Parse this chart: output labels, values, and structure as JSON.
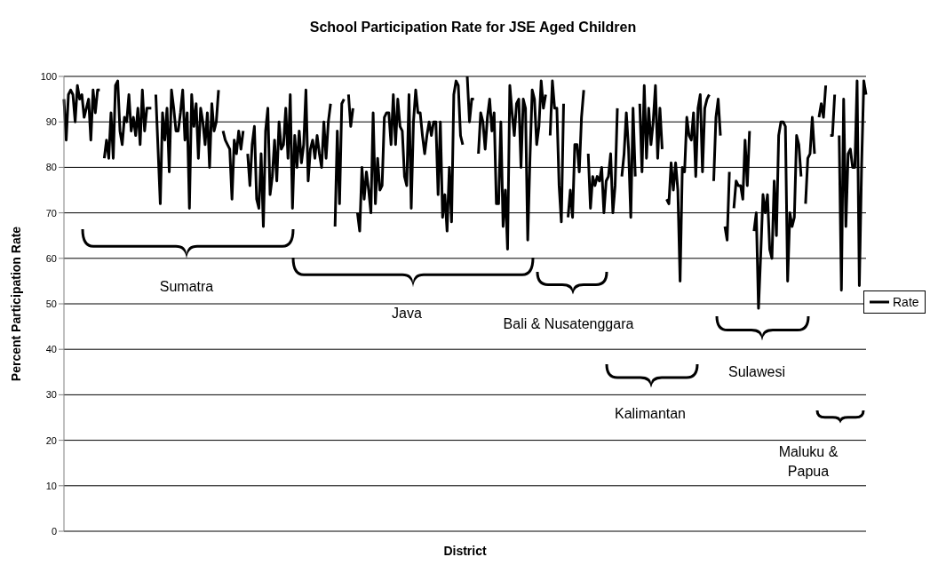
{
  "chart_data": {
    "type": "line",
    "title": "School Participation Rate for JSE Aged Children",
    "xlabel": "District",
    "ylabel": "Percent Participation Rate",
    "annotations": [
      "Sumatra",
      "Java",
      "Bali & Nusatenggara",
      "Kalimantan",
      "Sulawesi",
      "Maluku & Papua"
    ],
    "categories": [
      null,
      null,
      null,
      null,
      null,
      null,
      null,
      null,
      null,
      null,
      null,
      null,
      null,
      null,
      null,
      null,
      null,
      null,
      null,
      null,
      null,
      null,
      null,
      null,
      null,
      null,
      null,
      null,
      null,
      null,
      null,
      null,
      null,
      null,
      null,
      null,
      null,
      null,
      null,
      null,
      null,
      null,
      null,
      null,
      null,
      null,
      null,
      null,
      null,
      null,
      null,
      null,
      null,
      null,
      null,
      null,
      null,
      null,
      null,
      null,
      null,
      null,
      null,
      null,
      null,
      null,
      null,
      null,
      null,
      null,
      null,
      null,
      null,
      null,
      null,
      null,
      null,
      null,
      null,
      null,
      null,
      null,
      null,
      null,
      null,
      null,
      null,
      null,
      null,
      null,
      null,
      null,
      null,
      null,
      null,
      null,
      null,
      null,
      null,
      null,
      null,
      null,
      null,
      null,
      null,
      null,
      null,
      null,
      null,
      null,
      null,
      null,
      null,
      null,
      null,
      null,
      null,
      null,
      null,
      null,
      null,
      null,
      null,
      null,
      null,
      null,
      null,
      null,
      null,
      null,
      null,
      null,
      null,
      null,
      null,
      null,
      null,
      null,
      null,
      null,
      null,
      null,
      null,
      null,
      null,
      null,
      null,
      null,
      null,
      null,
      null,
      null,
      null,
      null,
      null,
      null,
      null,
      null,
      null,
      null,
      null,
      null,
      null,
      null,
      null,
      null,
      null,
      null,
      null,
      null,
      null,
      null,
      null,
      null,
      null,
      null,
      null,
      null,
      null,
      null,
      null,
      null,
      null,
      null,
      null,
      null,
      null,
      null,
      null,
      null,
      null,
      null,
      null,
      null,
      null,
      null,
      null,
      null,
      null,
      null,
      null,
      null,
      null,
      null,
      null,
      null,
      null,
      null,
      null,
      null,
      null,
      null,
      null,
      null,
      null,
      null,
      null,
      null,
      null,
      null,
      null,
      null,
      null,
      null,
      null,
      null,
      null,
      null,
      null,
      null,
      null,
      null,
      null,
      null,
      null,
      null,
      null,
      null,
      null,
      null,
      null,
      null,
      null,
      null,
      null,
      null,
      null,
      null,
      null,
      null,
      null,
      null,
      null,
      null,
      null,
      null,
      null,
      null,
      null,
      null,
      null,
      null,
      null,
      null,
      null,
      null,
      null,
      null,
      null,
      null,
      null,
      null,
      null,
      null,
      null,
      null,
      null,
      null,
      null,
      null,
      null,
      null,
      null,
      null,
      null,
      null,
      null,
      null,
      null,
      null,
      null,
      null,
      null,
      null,
      null,
      null,
      null,
      null,
      null,
      null,
      null,
      null,
      null,
      null,
      null,
      null,
      null,
      null,
      null,
      null,
      null,
      null,
      null,
      null,
      null,
      null,
      null,
      null,
      null,
      null,
      null,
      null,
      null,
      null,
      null,
      null,
      null,
      null,
      null,
      null,
      null,
      null,
      null,
      null,
      null,
      null,
      null,
      null,
      null,
      null,
      null,
      null,
      null,
      null,
      null,
      null,
      null,
      null,
      null,
      null,
      null,
      null,
      null,
      null,
      null,
      null,
      null,
      null,
      null
    ],
    "series": [
      {
        "name": "Rate",
        "color": "#000000",
        "values": [
          95,
          86,
          96,
          97,
          96,
          90,
          98,
          95,
          96,
          91,
          93,
          95,
          86,
          97,
          92,
          97,
          97,
          null,
          82,
          86,
          82,
          92,
          82,
          98,
          99,
          88,
          85,
          91,
          90,
          96,
          88,
          91,
          87,
          93,
          85,
          97,
          88,
          93,
          93,
          93,
          null,
          96,
          84,
          72,
          92,
          86,
          93,
          79,
          97,
          93,
          88,
          88,
          92,
          97,
          86,
          92,
          71,
          96,
          89,
          94,
          82,
          93,
          90,
          85,
          92,
          80,
          94,
          88,
          90,
          97,
          null,
          88,
          86,
          85,
          84,
          73,
          86,
          83,
          88,
          84,
          88,
          null,
          83,
          76,
          85,
          89,
          73,
          71,
          83,
          67,
          88,
          93,
          74,
          78,
          86,
          77,
          90,
          84,
          85,
          93,
          82,
          96,
          71,
          87,
          80,
          88,
          81,
          85,
          97,
          77,
          84,
          86,
          82,
          87,
          83,
          80,
          90,
          82,
          90,
          94,
          null,
          67,
          88,
          72,
          94,
          95,
          null,
          96,
          89,
          93,
          null,
          70,
          66,
          80,
          73,
          79,
          75,
          70,
          92,
          72,
          82,
          75,
          76,
          91,
          92,
          92,
          85,
          96,
          85,
          95,
          89,
          88,
          78,
          76,
          96,
          71,
          90,
          97,
          92,
          92,
          87,
          83,
          87,
          90,
          87,
          90,
          90,
          74,
          90,
          69,
          74,
          66,
          80,
          68,
          96,
          99,
          98,
          87,
          85,
          null,
          100,
          90,
          95,
          95,
          null,
          83,
          92,
          90,
          84,
          91,
          95,
          88,
          92,
          72,
          72,
          90,
          67,
          75,
          62,
          98,
          92,
          87,
          94,
          95,
          80,
          95,
          93,
          64,
          82,
          97,
          95,
          85,
          89,
          99,
          93,
          96,
          null,
          87,
          99,
          93,
          93,
          76,
          68,
          94,
          null,
          69,
          75,
          69,
          85,
          85,
          79,
          91,
          97,
          null,
          83,
          71,
          78,
          76,
          78,
          77,
          80,
          70,
          77,
          78,
          83,
          70,
          76,
          93,
          null,
          78,
          83,
          92,
          84,
          69,
          93,
          78,
          null,
          94,
          79,
          98,
          82,
          93,
          85,
          90,
          98,
          82,
          93,
          84,
          null,
          73,
          72,
          81,
          75,
          81,
          75,
          55,
          80,
          79,
          91,
          87,
          86,
          92,
          78,
          93,
          96,
          79,
          93,
          95,
          96,
          null,
          77,
          91,
          95,
          87,
          null,
          67,
          64,
          79,
          null,
          71,
          77,
          76,
          76,
          73,
          86,
          76,
          88,
          null,
          66,
          70,
          49,
          61,
          74,
          70,
          74,
          62,
          60,
          77,
          65,
          87,
          90,
          90,
          89,
          55,
          70,
          67,
          69,
          87,
          85,
          78,
          null,
          72,
          82,
          83,
          91,
          83,
          null,
          91,
          94,
          91,
          98,
          null,
          87,
          87,
          96,
          null,
          87,
          53,
          95,
          67,
          83,
          84,
          80,
          80,
          99,
          54,
          80,
          99,
          96
        ]
      }
    ],
    "ylim": [
      0,
      100
    ],
    "yticks": [
      0,
      10,
      20,
      30,
      40,
      50,
      60,
      70,
      80,
      90,
      100
    ],
    "grid": "y",
    "legend": "right",
    "marker": "none",
    "line_style": "solid"
  }
}
